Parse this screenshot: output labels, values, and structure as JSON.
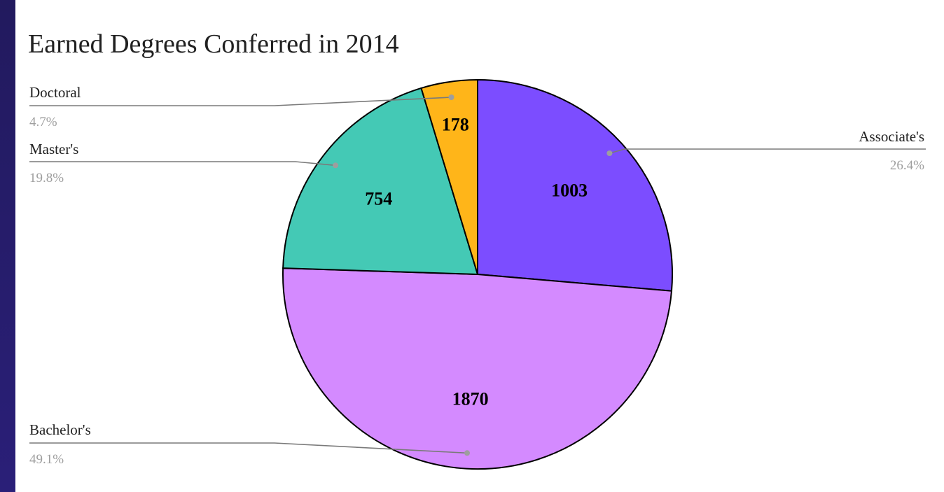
{
  "chart_data": {
    "type": "pie",
    "title": "Earned Degrees Conferred in 2014",
    "slices": [
      {
        "label": "Associate's",
        "value": 1003,
        "percent": "26.4%",
        "color": "#7c4dff"
      },
      {
        "label": "Bachelor's",
        "value": 1870,
        "percent": "49.1%",
        "color": "#d48aff"
      },
      {
        "label": "Master's",
        "value": 754,
        "percent": "19.8%",
        "color": "#44c9b5"
      },
      {
        "label": "Doctoral",
        "value": 178,
        "percent": "4.7%",
        "color": "#ffb519"
      }
    ]
  }
}
